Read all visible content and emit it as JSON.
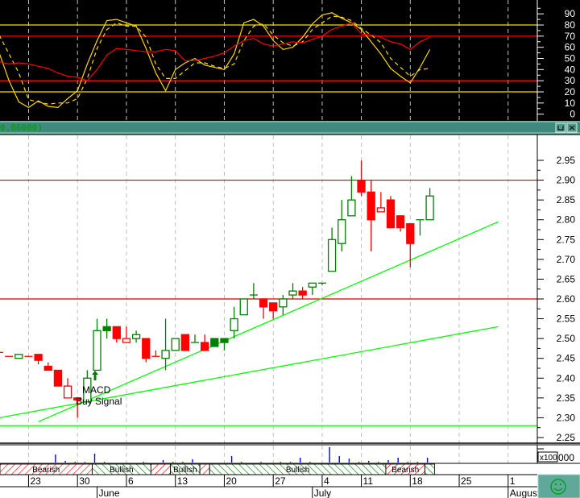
{
  "header": {
    "title": "0.06000)",
    "restore_icon": "restore-icon",
    "close_icon": "close-icon"
  },
  "annotations": {
    "macd": "MACD",
    "buy_signal": "Buy Signal",
    "arrow_icon": "up-arrow-icon"
  },
  "volume_unit": {
    "box": "x100",
    "suffix": "000"
  },
  "status_icon": "smiley-icon",
  "colors": {
    "up": "#008000",
    "down": "#ff0000",
    "trendline": "#00ff00",
    "stoch": "#ffd800",
    "rsi": "#ff0000",
    "volume": "#0000ff",
    "header": "#3f8a7c"
  },
  "chart_data": [
    {
      "type": "line",
      "panel": "oscillator",
      "ylim": [
        0,
        95
      ],
      "yticks": [
        0,
        10,
        20,
        30,
        40,
        50,
        60,
        70,
        80,
        90
      ],
      "reference_lines": [
        {
          "value": 80,
          "color": "#ffd800"
        },
        {
          "value": 20,
          "color": "#ffd800"
        },
        {
          "value": 70,
          "color": "#ff0000"
        },
        {
          "value": 30,
          "color": "#ff0000"
        }
      ],
      "series": [
        {
          "style": "solid",
          "color": "#ffd800",
          "values": [
            55,
            30,
            11,
            6,
            12,
            7,
            6,
            14,
            21,
            45,
            66,
            84,
            85,
            82,
            79,
            59,
            37,
            21,
            40,
            46,
            50,
            44,
            42,
            40,
            54,
            82,
            85,
            79,
            66,
            58,
            60,
            69,
            81,
            89,
            91,
            86,
            82,
            76,
            65,
            54,
            41,
            34,
            28,
            42,
            58
          ]
        },
        {
          "style": "dashed",
          "color": "#ffd800",
          "values": [
            71,
            54,
            37,
            13,
            11,
            9,
            10,
            10,
            14,
            32,
            59,
            76,
            82,
            79,
            79,
            69,
            45,
            32,
            32,
            39,
            46,
            46,
            43,
            41,
            45,
            66,
            79,
            81,
            71,
            64,
            61,
            65,
            76,
            82,
            88,
            87,
            84,
            77,
            71,
            64,
            50,
            42,
            34,
            40,
            41
          ]
        },
        {
          "style": "solid",
          "color": "#ff0000",
          "values": [
            47,
            45,
            46,
            45,
            43,
            41,
            37,
            34,
            33,
            30,
            40,
            53,
            59,
            58,
            57,
            56,
            56,
            58,
            57,
            48,
            48,
            50,
            52,
            55,
            61,
            66,
            68,
            63,
            61,
            63,
            65,
            64,
            67,
            70,
            76,
            79,
            82,
            72,
            71,
            69,
            65,
            63,
            58,
            65,
            69
          ]
        }
      ]
    },
    {
      "type": "candlestick",
      "panel": "price",
      "ylim": [
        2.23,
        2.96
      ],
      "yticks": [
        "2.25",
        "2.30",
        "2.35",
        "2.40",
        "2.45",
        "2.50",
        "2.55",
        "2.60",
        "2.65",
        "2.70",
        "2.75",
        "2.80",
        "2.85",
        "2.90",
        "2.95"
      ],
      "grid": "vertical dashed at week starts",
      "fields": [
        "date",
        "open",
        "high",
        "low",
        "close",
        "color",
        "body"
      ],
      "candles": [
        [
          "May 18",
          2.465,
          2.465,
          2.465,
          2.465,
          "down",
          "filled"
        ],
        [
          "May 19",
          2.455,
          2.455,
          2.455,
          2.455,
          "down",
          "filled"
        ],
        [
          "May 20",
          2.45,
          2.46,
          2.45,
          2.46,
          "up",
          "hollow"
        ],
        [
          "May 23",
          2.455,
          2.455,
          2.455,
          2.455,
          "down",
          "filled"
        ],
        [
          "May 24",
          2.46,
          2.46,
          2.435,
          2.445,
          "down",
          "filled"
        ],
        [
          "May 25",
          2.43,
          2.44,
          2.42,
          2.42,
          "down",
          "filled"
        ],
        [
          "May 26",
          2.42,
          2.42,
          2.38,
          2.38,
          "down",
          "filled"
        ],
        [
          "May 27",
          2.38,
          2.4,
          2.35,
          2.35,
          "down",
          "hollow"
        ],
        [
          "May 30",
          2.35,
          2.35,
          2.3,
          2.345,
          "down",
          "filled"
        ],
        [
          "May 31",
          2.34,
          2.42,
          2.34,
          2.4,
          "up",
          "hollow"
        ],
        [
          "Jun 1",
          2.42,
          2.55,
          2.42,
          2.52,
          "up",
          "hollow"
        ],
        [
          "Jun 2",
          2.52,
          2.55,
          2.5,
          2.53,
          "up",
          "filled"
        ],
        [
          "Jun 3",
          2.53,
          2.53,
          2.49,
          2.5,
          "down",
          "filled"
        ],
        [
          "Jun 6",
          2.5,
          2.53,
          2.49,
          2.49,
          "down",
          "hollow"
        ],
        [
          "Jun 7",
          2.5,
          2.52,
          2.49,
          2.51,
          "up",
          "hollow"
        ],
        [
          "Jun 8",
          2.5,
          2.5,
          2.44,
          2.45,
          "down",
          "filled"
        ],
        [
          "Jun 9",
          2.455,
          2.47,
          2.455,
          2.455,
          "down",
          "filled"
        ],
        [
          "Jun 10",
          2.45,
          2.55,
          2.42,
          2.47,
          "up",
          "hollow"
        ],
        [
          "Jun 13",
          2.47,
          2.5,
          2.47,
          2.5,
          "up",
          "hollow"
        ],
        [
          "Jun 14",
          2.51,
          2.51,
          2.47,
          2.47,
          "down",
          "filled"
        ],
        [
          "Jun 15",
          2.49,
          2.51,
          2.49,
          2.49,
          "up",
          "hollow"
        ],
        [
          "Jun 16",
          2.49,
          2.51,
          2.47,
          2.47,
          "down",
          "filled"
        ],
        [
          "Jun 17",
          2.48,
          2.5,
          2.48,
          2.5,
          "up",
          "filled"
        ],
        [
          "Jun 20",
          2.49,
          2.5,
          2.47,
          2.5,
          "up",
          "filled"
        ],
        [
          "Jun 21",
          2.52,
          2.58,
          2.5,
          2.55,
          "up",
          "hollow"
        ],
        [
          "Jun 22",
          2.56,
          2.6,
          2.56,
          2.6,
          "up",
          "hollow"
        ],
        [
          "Jun 23",
          2.61,
          2.64,
          2.6,
          2.61,
          "up",
          "hollow"
        ],
        [
          "Jun 24",
          2.6,
          2.6,
          2.55,
          2.58,
          "down",
          "filled"
        ],
        [
          "Jun 27",
          2.59,
          2.59,
          2.55,
          2.57,
          "down",
          "filled"
        ],
        [
          "Jun 28",
          2.58,
          2.61,
          2.56,
          2.6,
          "up",
          "hollow"
        ],
        [
          "Jun 29",
          2.61,
          2.64,
          2.6,
          2.62,
          "up",
          "hollow"
        ],
        [
          "Jun 30",
          2.62,
          2.63,
          2.6,
          2.61,
          "down",
          "filled"
        ],
        [
          "Jul 1",
          2.63,
          2.64,
          2.61,
          2.64,
          "up",
          "hollow"
        ],
        [
          "Jul 5",
          2.64,
          2.64,
          2.635,
          2.64,
          "up",
          "hollow"
        ],
        [
          "Jul 6",
          2.67,
          2.78,
          2.67,
          2.75,
          "up",
          "hollow"
        ],
        [
          "Jul 7",
          2.74,
          2.85,
          2.72,
          2.8,
          "up",
          "hollow"
        ],
        [
          "Jul 8",
          2.81,
          2.91,
          2.81,
          2.85,
          "up",
          "hollow"
        ],
        [
          "Jul 11",
          2.9,
          2.95,
          2.86,
          2.87,
          "down",
          "filled"
        ],
        [
          "Jul 12",
          2.87,
          2.9,
          2.72,
          2.8,
          "down",
          "filled"
        ],
        [
          "Jul 13",
          2.83,
          2.87,
          2.82,
          2.82,
          "down",
          "hollow"
        ],
        [
          "Jul 14",
          2.85,
          2.86,
          2.78,
          2.78,
          "down",
          "filled"
        ],
        [
          "Jul 15",
          2.81,
          2.81,
          2.77,
          2.78,
          "down",
          "filled"
        ],
        [
          "Jul 18",
          2.79,
          2.79,
          2.68,
          2.74,
          "down",
          "filled"
        ],
        [
          "Jul 19",
          2.8,
          2.8,
          2.76,
          2.8,
          "up",
          "hollow"
        ],
        [
          "Jul 20",
          2.8,
          2.88,
          2.8,
          2.86,
          "up",
          "hollow"
        ]
      ],
      "horizontal_lines": [
        {
          "price": 2.9,
          "color": "#d00000"
        },
        {
          "price": 2.6,
          "color": "#d00000"
        },
        {
          "price": 2.28,
          "color": "#00ff00"
        }
      ],
      "trendlines": [
        {
          "from": [
            "May 24",
            2.29
          ],
          "to": [
            "Jul 29",
            2.795
          ],
          "color": "#00ff00"
        },
        {
          "from": [
            "May 18",
            2.3
          ],
          "to": [
            "Jul 29",
            2.53
          ],
          "color": "#00ff00"
        }
      ]
    },
    {
      "type": "bar",
      "panel": "volume",
      "unit": "x100 000",
      "relative_values": [
        0,
        0,
        0,
        0,
        0,
        0,
        0.53,
        0.11,
        0.05,
        0.05,
        0.58,
        0.05,
        0,
        0,
        0,
        0.05,
        0,
        0.16,
        0.05,
        0.05,
        0.21,
        0,
        0,
        0,
        0.42,
        0.05,
        0,
        0.05,
        0,
        0.05,
        0.05,
        0.32,
        0.05,
        0,
        1,
        0.42,
        0.26,
        0.05,
        0.11,
        0.05,
        0.16,
        0.32,
        0.05,
        0.05,
        0.32
      ]
    },
    {
      "type": "band",
      "panel": "sentiment",
      "segments": [
        {
          "from": "May 18",
          "to": "May 31",
          "trend": "bearish",
          "label": "Bearish"
        },
        {
          "from": "Jun 1",
          "to": "Jun 8",
          "trend": "bullish",
          "label": "Bullish"
        },
        {
          "from": "Jun 9",
          "to": "Jun 10",
          "trend": "bearish",
          "label": ""
        },
        {
          "from": "Jun 13",
          "to": "Jun 15",
          "trend": "bullish",
          "label": "Bullish"
        },
        {
          "from": "Jun 16",
          "to": "Jun 16",
          "trend": "bearish",
          "label": ""
        },
        {
          "from": "Jun 17",
          "to": "Jul 13",
          "trend": "bullish",
          "label": "Bullish"
        },
        {
          "from": "Jul 14",
          "to": "Jul 19",
          "trend": "bearish",
          "label": "Bearish"
        },
        {
          "from": "Jul 20",
          "to": "Jul 20",
          "trend": "bullish",
          "label": ""
        }
      ]
    }
  ],
  "x_axis": {
    "day_labels": [
      {
        "date": "May 23",
        "text": "23"
      },
      {
        "date": "May 30",
        "text": "30"
      },
      {
        "date": "Jun 6",
        "text": "6"
      },
      {
        "date": "Jun 13",
        "text": "13"
      },
      {
        "date": "Jun 20",
        "text": "20"
      },
      {
        "date": "Jun 27",
        "text": "27"
      },
      {
        "date": "Jul 4",
        "text": "4"
      },
      {
        "date": "Jul 11",
        "text": "11"
      },
      {
        "date": "Jul 18",
        "text": "18"
      },
      {
        "date": "Jul 25",
        "text": "25"
      },
      {
        "date": "Aug 1",
        "text": "1"
      }
    ],
    "month_labels": [
      {
        "date": "Jun 1",
        "text": "June"
      },
      {
        "date": "Jul 1",
        "text": "July"
      },
      {
        "date": "Aug 1",
        "text": "August"
      }
    ]
  }
}
